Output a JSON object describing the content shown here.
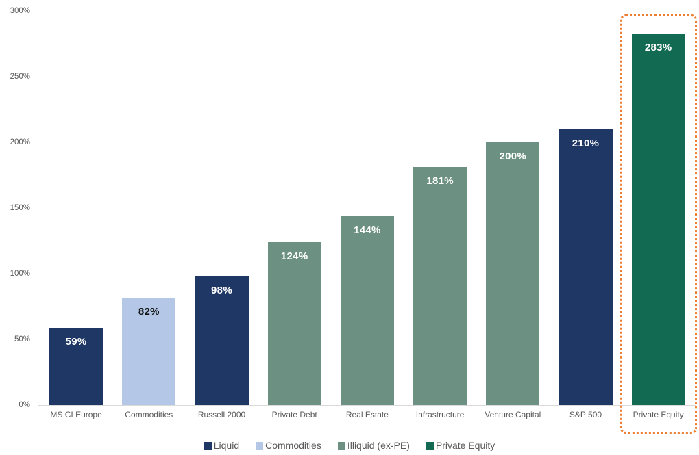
{
  "chart_data": {
    "type": "bar",
    "title": "",
    "xlabel": "",
    "ylabel": "",
    "categories": [
      "MS CI Europe",
      "Commodities",
      "Russell 2000",
      "Private Debt",
      "Real Estate",
      "Infrastructure",
      "Venture Capital",
      "S&P 500",
      "Private Equity"
    ],
    "values": [
      59,
      82,
      98,
      124,
      144,
      181,
      200,
      210,
      283
    ],
    "data_labels": [
      "59%",
      "82%",
      "98%",
      "124%",
      "144%",
      "181%",
      "200%",
      "210%",
      "283%"
    ],
    "bar_groups": [
      "Liquid",
      "Commodities",
      "Liquid",
      "Illiquid (ex-PE)",
      "Illiquid (ex-PE)",
      "Illiquid (ex-PE)",
      "Illiquid (ex-PE)",
      "Liquid",
      "Private Equity"
    ],
    "group_colors": {
      "Liquid": "#1f3764",
      "Commodities": "#b4c7e7",
      "Illiquid (ex-PE)": "#6c9183",
      "Private Equity": "#136a53"
    },
    "data_label_colors": [
      "#ffffff",
      "#111111",
      "#ffffff",
      "#ffffff",
      "#ffffff",
      "#ffffff",
      "#ffffff",
      "#ffffff",
      "#ffffff"
    ],
    "ylim": [
      0,
      300
    ],
    "ytick_labels": [
      "0%",
      "50%",
      "100%",
      "150%",
      "200%",
      "250%",
      "300%"
    ],
    "ytick_values": [
      0,
      50,
      100,
      150,
      200,
      250,
      300
    ],
    "grid": false,
    "legend": {
      "position": "bottom",
      "entries": [
        {
          "label": "Liquid",
          "color": "#1f3764"
        },
        {
          "label": "Commodities",
          "color": "#b4c7e7"
        },
        {
          "label": "Illiquid (ex-PE)",
          "color": "#6c9183"
        },
        {
          "label": "Private Equity",
          "color": "#136a53"
        }
      ]
    },
    "highlight": {
      "category": "Private Equity",
      "style": "dotted-outline",
      "color": "#ed7d31"
    },
    "axis_text_color": "#595959",
    "axis_line_color": "#d9d9d9"
  }
}
